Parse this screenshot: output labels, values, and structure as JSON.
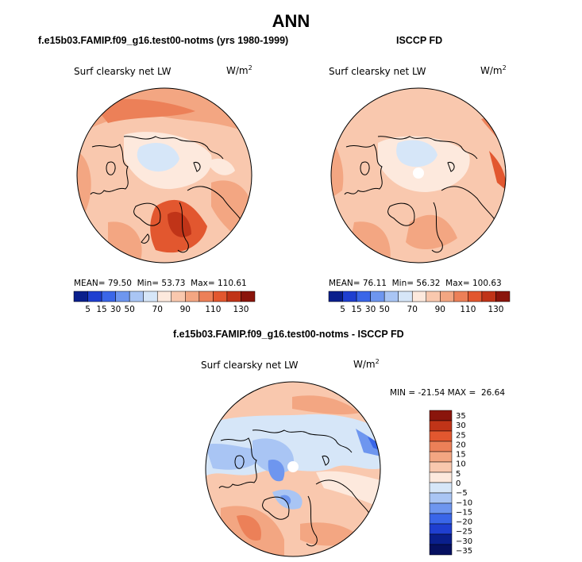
{
  "main_title": "ANN",
  "colors": {
    "scale_main": [
      "#0a1f8c",
      "#1f3fd0",
      "#3a66e8",
      "#6e96ef",
      "#a9c5f4",
      "#d6e6f8",
      "#fde9dd",
      "#f9c8ae",
      "#f3a682",
      "#ec8058",
      "#e2572f",
      "#c03418",
      "#8a150c"
    ],
    "scale_diff": [
      "#8a150c",
      "#c03418",
      "#e2572f",
      "#ec8058",
      "#f3a682",
      "#f9c8ae",
      "#fde9dd",
      "#d6e6f8",
      "#a9c5f4",
      "#6e96ef",
      "#3a66e8",
      "#1f3fd0",
      "#0a1f8c",
      "#061060"
    ]
  },
  "chart_data": [
    {
      "type": "heatmap",
      "projection": "north-polar-stereographic",
      "title": "f.e15b03.FAMIP.f09_g16.test00-notms (yrs 1980-1999)",
      "variable": "Surf clearsky net LW",
      "units": "W/m",
      "units_sup": "2",
      "stats": {
        "mean": "79.50",
        "min": "53.73",
        "max": "110.61"
      },
      "colorbar_ticks": [
        "5",
        "15",
        "30",
        "50",
        "70",
        "90",
        "110",
        "130"
      ]
    },
    {
      "type": "heatmap",
      "projection": "north-polar-stereographic",
      "title": "ISCCP FD",
      "variable": "Surf clearsky net LW",
      "units": "W/m",
      "units_sup": "2",
      "stats": {
        "mean": "76.11",
        "min": "56.32",
        "max": "100.63"
      },
      "colorbar_ticks": [
        "5",
        "15",
        "30",
        "50",
        "70",
        "90",
        "110",
        "130"
      ]
    },
    {
      "type": "heatmap",
      "projection": "north-polar-stereographic",
      "title": "f.e15b03.FAMIP.f09_g16.test00-notms - ISCCP FD",
      "variable": "Surf clearsky net LW",
      "units": "W/m",
      "units_sup": "2",
      "stats": {
        "min": "-21.54",
        "max": "26.64"
      },
      "colorbar_ticks": [
        "35",
        "30",
        "25",
        "20",
        "15",
        "10",
        "5",
        "0",
        "−5",
        "−10",
        "−15",
        "−20",
        "−25",
        "−30",
        "−35"
      ]
    }
  ]
}
